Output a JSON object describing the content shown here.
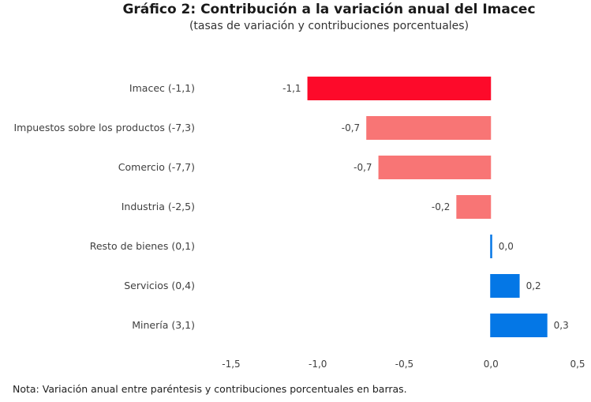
{
  "chart_data": {
    "type": "bar",
    "orientation": "horizontal",
    "title": "Gráfico 2: Contribución a la variación anual del Imacec",
    "subtitle": "(tasas de variación y contribuciones porcentuales)",
    "categories": [
      "Imacec (-1,1)",
      "Impuestos sobre los productos (-7,3)",
      "Comercio (-7,7)",
      "Industria (-2,5)",
      "Resto de bienes (0,1)",
      "Servicios (0,4)",
      "Minería (3,1)"
    ],
    "values": [
      -1.06,
      -0.72,
      -0.65,
      -0.2,
      0.01,
      0.17,
      0.33
    ],
    "data_labels": [
      "-1,1",
      "-0,7",
      "-0,7",
      "-0,2",
      "0,0",
      "0,2",
      "0,3"
    ],
    "colors": [
      "#fd0a2a",
      "#f87575",
      "#f87575",
      "#f87575",
      "#0477e6",
      "#0477e6",
      "#0477e6"
    ],
    "xlim": [
      -1.5,
      0.5
    ],
    "xticks": [
      -1.5,
      -1.0,
      -0.5,
      0.0,
      0.5
    ],
    "xtick_labels": [
      "-1,5",
      "-1,0",
      "-0,5",
      "0,0",
      "0,5"
    ],
    "xlabel": "",
    "ylabel": "",
    "grid": false,
    "legend": "none",
    "note": "Nota: Variación anual entre paréntesis y contribuciones porcentuales en barras."
  }
}
